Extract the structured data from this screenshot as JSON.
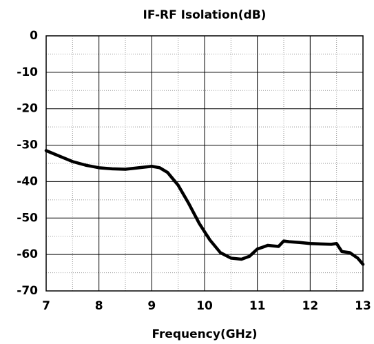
{
  "chart_data": {
    "type": "line",
    "title": "IF-RF Isolation(dB)",
    "x_label": "Frequency(GHz)",
    "x": [
      7.0,
      7.25,
      7.5,
      7.75,
      8.0,
      8.25,
      8.5,
      8.75,
      9.0,
      9.15,
      9.3,
      9.5,
      9.7,
      9.9,
      10.1,
      10.3,
      10.5,
      10.7,
      10.85,
      11.0,
      11.2,
      11.4,
      11.5,
      11.6,
      11.8,
      12.0,
      12.2,
      12.4,
      12.5,
      12.6,
      12.75,
      12.9,
      13.0
    ],
    "series": [
      {
        "color": "#000000",
        "values": [
          -31.5,
          -33,
          -34.5,
          -35.5,
          -36.2,
          -36.5,
          -36.6,
          -36.2,
          -35.8,
          -36.2,
          -37.5,
          -41,
          -46,
          -51.5,
          -56,
          -59.5,
          -61,
          -61.3,
          -60.5,
          -58.5,
          -57.5,
          -57.8,
          -56.3,
          -56.5,
          -56.7,
          -57,
          -57.1,
          -57.2,
          -57,
          -59.2,
          -59.5,
          -61,
          -62.7
        ]
      }
    ],
    "xlim": [
      7,
      13
    ],
    "xticks": [
      7,
      8,
      9,
      10,
      11,
      12,
      13
    ],
    "ylim": [
      -70,
      0
    ],
    "yticks": [
      0,
      -10,
      -20,
      -30,
      -40,
      -50,
      -60,
      -70
    ],
    "grid": true,
    "minor_grid": true
  }
}
